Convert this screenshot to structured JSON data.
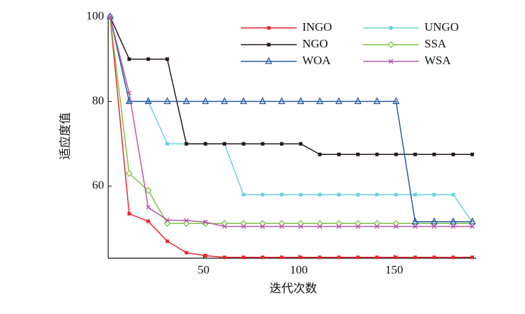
{
  "chart_data": {
    "type": "line",
    "x_label": "迭代次数",
    "y_label": "适应度值",
    "x": [
      1,
      11,
      21,
      31,
      41,
      51,
      61,
      71,
      81,
      91,
      101,
      111,
      121,
      131,
      141,
      151,
      161,
      171,
      181,
      191
    ],
    "xlim": [
      0,
      193
    ],
    "xticks": [
      50,
      100,
      150
    ],
    "ylim": [
      43,
      100.5
    ],
    "yticks": [
      60,
      80,
      100
    ],
    "series": [
      {
        "name": "INGO",
        "color": "#e8262a",
        "marker": "square",
        "values": [
          100,
          53.5,
          51.7,
          47,
          44.3,
          43.6,
          43.2,
          43.2,
          43.2,
          43.2,
          43.2,
          43.2,
          43.2,
          43.2,
          43.2,
          43.2,
          43.2,
          43.2,
          43.2,
          43.2
        ]
      },
      {
        "name": "UNGO",
        "color": "#6ccfd8",
        "marker": "square",
        "values": [
          100,
          80,
          80,
          70,
          70,
          70,
          70,
          58,
          58,
          58,
          58,
          58,
          58,
          58,
          58,
          58,
          58,
          58,
          58,
          51.5
        ]
      },
      {
        "name": "NGO",
        "color": "#231815",
        "marker": "square",
        "values": [
          100,
          90,
          90,
          90,
          70,
          70,
          70,
          70,
          70,
          70,
          70,
          67.5,
          67.5,
          67.5,
          67.5,
          67.5,
          67.5,
          67.5,
          67.5,
          67.5
        ]
      },
      {
        "name": "SSA",
        "color": "#7cc242",
        "marker": "diamond",
        "values": [
          100,
          63,
          59,
          51.2,
          51.2,
          51.2,
          51.2,
          51.2,
          51.2,
          51.2,
          51.2,
          51.2,
          51.2,
          51.2,
          51.2,
          51.2,
          51.2,
          51.2,
          51.2,
          51.2
        ]
      },
      {
        "name": "WOA",
        "color": "#2858a8",
        "marker": "triangle",
        "values": [
          100,
          80,
          80,
          80,
          80,
          80,
          80,
          80,
          80,
          80,
          80,
          80,
          80,
          80,
          80,
          80,
          51.6,
          51.6,
          51.6,
          51.6
        ]
      },
      {
        "name": "WSA",
        "color": "#b35aa6",
        "marker": "cross",
        "values": [
          100,
          82,
          55,
          52,
          51.9,
          51.5,
          50.5,
          50.5,
          50.5,
          50.5,
          50.5,
          50.5,
          50.5,
          50.5,
          50.5,
          50.5,
          50.5,
          50.5,
          50.5,
          50.5
        ]
      }
    ]
  }
}
